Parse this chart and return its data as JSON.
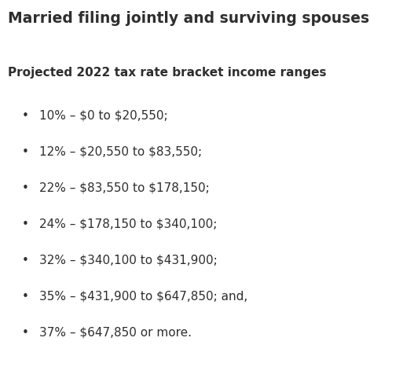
{
  "title": "Married filing jointly and surviving spouses",
  "subtitle": "Projected 2022 tax rate bracket income ranges",
  "bullets": [
    "10% – $0 to $20,550;",
    "12% – $20,550 to $83,550;",
    "22% – $83,550 to $178,150;",
    "24% – $178,150 to $340,100;",
    "32% – $340,100 to $431,900;",
    "35% – $431,900 to $647,850; and,",
    "37% – $647,850 or more."
  ],
  "background_color": "#ffffff",
  "text_color": "#2e2e2e",
  "title_fontsize": 13.5,
  "subtitle_fontsize": 11.0,
  "bullet_fontsize": 11.0,
  "figwidth": 5.27,
  "figheight": 4.67,
  "dpi": 100
}
